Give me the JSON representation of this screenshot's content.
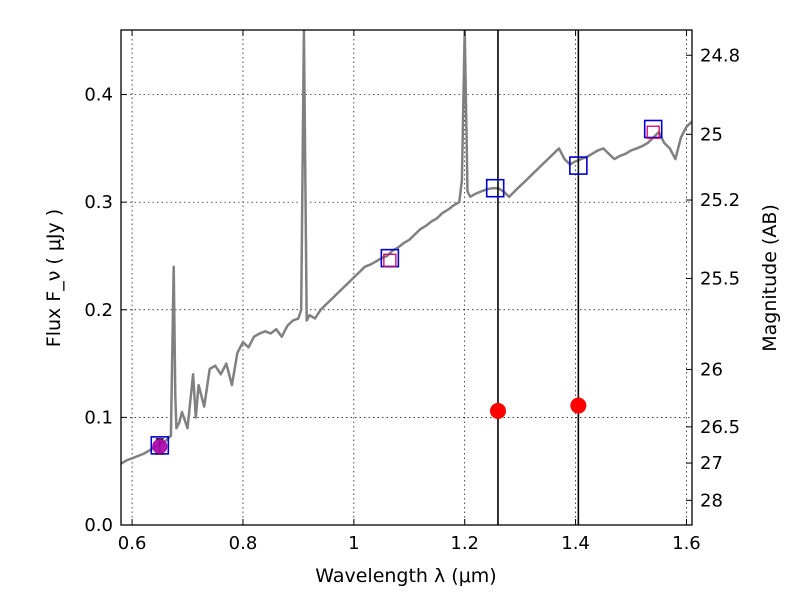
{
  "chart_data": {
    "type": "line",
    "xlabel": "Wavelength  λ (μm)",
    "ylabel": "Flux  F_ν  ( μJy )",
    "ylabel_right": "Magnitude (AB)",
    "xlim": [
      0.58,
      1.61
    ],
    "ylim": [
      0.0,
      0.46
    ],
    "grid": true,
    "x_ticks": [
      0.6,
      0.8,
      1.0,
      1.2,
      1.4,
      1.6
    ],
    "x_tick_labels": [
      "0.6",
      "0.8",
      "1",
      "1.2",
      "1.4",
      "1.6"
    ],
    "y_ticks": [
      0.0,
      0.1,
      0.2,
      0.3,
      0.4
    ],
    "y_tick_labels": [
      "0.0",
      "0.1",
      "0.2",
      "0.3",
      "0.4"
    ],
    "mag_ticks": [
      24.8,
      25,
      25.2,
      25.5,
      26,
      26.5,
      27,
      28
    ],
    "mag_tick_labels": [
      "24.8",
      "25",
      "25.2",
      "25.5",
      "26",
      "26.5",
      "27",
      "28"
    ],
    "vertical_lines": [
      1.26,
      1.405
    ],
    "series": [
      {
        "kind": "spectrum",
        "color": "#808080",
        "x": [
          0.58,
          0.59,
          0.6,
          0.61,
          0.62,
          0.63,
          0.64,
          0.65,
          0.66,
          0.67,
          0.675,
          0.678,
          0.68,
          0.685,
          0.69,
          0.7,
          0.71,
          0.715,
          0.72,
          0.73,
          0.74,
          0.75,
          0.76,
          0.77,
          0.78,
          0.79,
          0.8,
          0.81,
          0.82,
          0.83,
          0.84,
          0.85,
          0.86,
          0.87,
          0.88,
          0.89,
          0.9,
          0.905,
          0.91,
          0.915,
          0.92,
          0.93,
          0.94,
          0.95,
          0.96,
          0.97,
          0.98,
          0.99,
          1.0,
          1.01,
          1.02,
          1.03,
          1.04,
          1.05,
          1.06,
          1.07,
          1.08,
          1.09,
          1.1,
          1.11,
          1.12,
          1.13,
          1.14,
          1.15,
          1.16,
          1.17,
          1.18,
          1.19,
          1.195,
          1.2,
          1.205,
          1.21,
          1.22,
          1.23,
          1.24,
          1.25,
          1.26,
          1.27,
          1.28,
          1.29,
          1.3,
          1.31,
          1.32,
          1.33,
          1.34,
          1.35,
          1.36,
          1.37,
          1.38,
          1.39,
          1.4,
          1.41,
          1.42,
          1.43,
          1.44,
          1.45,
          1.46,
          1.47,
          1.48,
          1.49,
          1.5,
          1.51,
          1.52,
          1.53,
          1.54,
          1.55,
          1.56,
          1.57,
          1.58,
          1.59,
          1.6,
          1.61
        ],
        "y": [
          0.057,
          0.06,
          0.062,
          0.064,
          0.066,
          0.069,
          0.072,
          0.075,
          0.078,
          0.083,
          0.24,
          0.12,
          0.09,
          0.095,
          0.105,
          0.09,
          0.14,
          0.1,
          0.13,
          0.11,
          0.145,
          0.148,
          0.14,
          0.15,
          0.13,
          0.16,
          0.17,
          0.165,
          0.175,
          0.178,
          0.18,
          0.178,
          0.182,
          0.175,
          0.185,
          0.19,
          0.192,
          0.2,
          0.46,
          0.19,
          0.195,
          0.192,
          0.2,
          0.205,
          0.21,
          0.215,
          0.22,
          0.225,
          0.23,
          0.235,
          0.24,
          0.242,
          0.245,
          0.248,
          0.25,
          0.255,
          0.258,
          0.262,
          0.265,
          0.27,
          0.275,
          0.278,
          0.282,
          0.285,
          0.29,
          0.293,
          0.297,
          0.3,
          0.32,
          0.46,
          0.31,
          0.305,
          0.308,
          0.31,
          0.312,
          0.313,
          0.313,
          0.31,
          0.305,
          0.31,
          0.315,
          0.32,
          0.325,
          0.33,
          0.335,
          0.34,
          0.345,
          0.35,
          0.34,
          0.335,
          0.338,
          0.34,
          0.342,
          0.345,
          0.348,
          0.35,
          0.345,
          0.34,
          0.343,
          0.345,
          0.348,
          0.35,
          0.352,
          0.355,
          0.36,
          0.365,
          0.355,
          0.35,
          0.34,
          0.36,
          0.37,
          0.375
        ]
      },
      {
        "kind": "broadband",
        "marker": "open-square",
        "color": "#0000cc",
        "x": [
          0.65,
          1.065,
          1.255,
          1.405,
          1.54
        ],
        "y": [
          0.074,
          0.248,
          0.313,
          0.334,
          0.368
        ]
      },
      {
        "kind": "model-band",
        "marker": "small-square",
        "color": "#cc0066",
        "x": [
          1.065,
          1.54
        ],
        "y": [
          0.246,
          0.365
        ]
      },
      {
        "kind": "measured",
        "marker": "filled-circle",
        "color": "#ff0000",
        "x": [
          1.26,
          1.405
        ],
        "y": [
          0.106,
          0.111
        ]
      },
      {
        "kind": "measured-optical",
        "marker": "filled-circle-errorbar",
        "color": "#aa00aa",
        "x": [
          0.65
        ],
        "y": [
          0.073
        ],
        "yerr": [
          0.007
        ]
      }
    ]
  }
}
